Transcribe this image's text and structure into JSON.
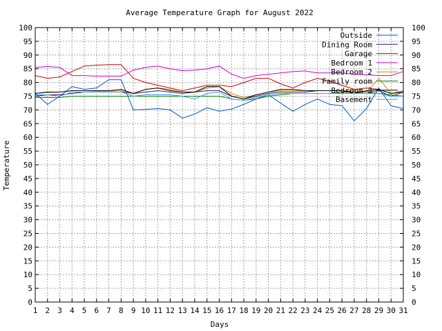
{
  "chart_data": {
    "type": "line",
    "title": "Average Temperature Graph for August 2022",
    "xlabel": "Days",
    "ylabel": "Temperature",
    "xlim": [
      1,
      31
    ],
    "ylim": [
      0,
      100
    ],
    "x_ticks": [
      1,
      2,
      3,
      4,
      5,
      6,
      7,
      8,
      9,
      10,
      11,
      12,
      13,
      14,
      15,
      16,
      17,
      18,
      19,
      20,
      21,
      22,
      23,
      24,
      25,
      26,
      27,
      28,
      29,
      30,
      31
    ],
    "y_ticks": [
      0,
      5,
      10,
      15,
      20,
      25,
      30,
      35,
      40,
      45,
      50,
      55,
      60,
      65,
      70,
      75,
      80,
      85,
      90,
      95,
      100
    ],
    "grid": true,
    "legend_position": "top-right",
    "x": [
      1,
      2,
      3,
      4,
      5,
      6,
      7,
      8,
      9,
      10,
      11,
      12,
      13,
      14,
      15,
      16,
      17,
      18,
      19,
      20,
      21,
      22,
      23,
      24,
      25,
      26,
      27,
      28,
      29,
      30,
      31
    ],
    "series": [
      {
        "name": "Outside",
        "color": "#0055cc",
        "values": [
          76,
          72,
          75,
          78.5,
          77.5,
          78,
          81,
          81,
          70,
          70.2,
          70.5,
          70,
          67,
          68.5,
          70.8,
          69.5,
          70.3,
          72,
          74,
          75.5,
          72.5,
          69.5,
          72,
          74,
          72,
          71.5,
          66,
          70.5,
          78,
          71.5,
          70.5
        ]
      },
      {
        "name": "Dining Room",
        "color": "#2a1a66",
        "values": [
          75,
          75.5,
          75.5,
          76,
          76.5,
          76.5,
          76.5,
          76.5,
          76,
          76.5,
          77,
          76.5,
          76,
          76.5,
          77,
          77,
          75,
          74,
          75,
          76,
          76.5,
          76.5,
          76.5,
          77,
          77,
          77,
          76.5,
          76.5,
          77,
          75,
          76.5
        ]
      },
      {
        "name": "Garage",
        "color": "#cc0000",
        "values": [
          82.5,
          81.5,
          82,
          84,
          86,
          86.3,
          86.5,
          86.5,
          81.5,
          80,
          79,
          78,
          77,
          78,
          79,
          79,
          78.5,
          80,
          81.5,
          81.5,
          79.5,
          78,
          80,
          81.5,
          80.5,
          79,
          77.5,
          78,
          77.5,
          76,
          77
        ]
      },
      {
        "name": "Bedroom 1",
        "color": "#cc00cc",
        "values": [
          85.5,
          85.8,
          85.5,
          82.5,
          82.5,
          82.3,
          82.3,
          82.3,
          84.5,
          85.5,
          86,
          85,
          84.3,
          84.5,
          85,
          86,
          83,
          81.5,
          82.5,
          83,
          83.5,
          84,
          84.2,
          83.5,
          83.5,
          83.5,
          83,
          82.8,
          82.5,
          82.5,
          84
        ]
      },
      {
        "name": "Bedroom 2",
        "color": "#cc8800",
        "values": [
          76,
          76.3,
          76.5,
          77,
          77,
          76.8,
          76.8,
          77,
          76,
          77.5,
          78,
          77.5,
          76.5,
          76.5,
          78,
          78.5,
          76,
          74.5,
          75.5,
          76.5,
          77,
          77,
          77,
          77,
          77,
          77,
          77,
          76.5,
          81.5,
          76,
          77
        ]
      },
      {
        "name": "Family room",
        "color": "#008800",
        "values": [
          74.5,
          74.5,
          74.5,
          75,
          75,
          75,
          75,
          75,
          75,
          75,
          75,
          75,
          75,
          75,
          75,
          75,
          74,
          73.5,
          74,
          75,
          75.5,
          76,
          76,
          76,
          76,
          76.5,
          76.5,
          76.5,
          76,
          75.5,
          75
        ]
      },
      {
        "name": "Bedroom 3",
        "color": "#000000",
        "values": [
          76,
          76.5,
          76.5,
          77,
          77,
          77,
          77,
          77.5,
          76,
          77.5,
          78,
          77,
          76.5,
          76.5,
          78.5,
          78.5,
          75,
          74,
          75.5,
          76.5,
          77.5,
          77.5,
          77,
          77,
          77,
          77,
          76,
          77,
          77.5,
          76,
          76.5
        ]
      },
      {
        "name": "Basement",
        "color": "#3399ff",
        "values": [
          75.5,
          75.5,
          75,
          76.5,
          76.5,
          76.5,
          76.5,
          76.5,
          75,
          75.5,
          75.5,
          75.5,
          75,
          74,
          76,
          76.5,
          74,
          73.5,
          74.5,
          75.5,
          76,
          76,
          76,
          76,
          76,
          76,
          76,
          76,
          76,
          75,
          75
        ]
      }
    ]
  }
}
